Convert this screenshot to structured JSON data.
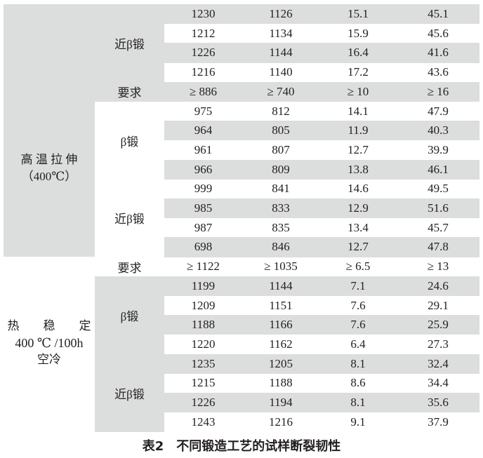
{
  "table": {
    "sections": [
      {
        "label_line1": "高 温 拉 伸",
        "label_line2": "（400℃）",
        "groups": [
          {
            "label": "近β锻",
            "rows": [
              [
                "1230",
                "1126",
                "15.1",
                "45.1"
              ],
              [
                "1212",
                "1134",
                "15.9",
                "45.6"
              ],
              [
                "1226",
                "1144",
                "16.4",
                "41.6"
              ],
              [
                "1216",
                "1140",
                "17.2",
                "43.6"
              ]
            ]
          },
          {
            "label": "要求",
            "rows": [
              [
                "≥ 886",
                "≥ 740",
                "≥ 10",
                "≥ 16"
              ]
            ]
          },
          {
            "label": "β锻",
            "rows": [
              [
                "975",
                "812",
                "14.1",
                "47.9"
              ],
              [
                "964",
                "805",
                "11.9",
                "40.3"
              ],
              [
                "961",
                "807",
                "12.7",
                "39.9"
              ],
              [
                "966",
                "809",
                "13.8",
                "46.1"
              ]
            ]
          },
          {
            "label": "近β锻",
            "rows": [
              [
                "999",
                "841",
                "14.6",
                "49.5"
              ],
              [
                "985",
                "833",
                "12.9",
                "51.6"
              ],
              [
                "987",
                "835",
                "13.4",
                "45.7"
              ],
              [
                "698",
                "846",
                "12.7",
                "47.8"
              ]
            ]
          }
        ]
      },
      {
        "label_line1": "热　　稳　　定",
        "label_line2": "400 ℃ /100h",
        "label_line3": "空冷",
        "groups": [
          {
            "label": "要求",
            "rows": [
              [
                "≥ 1122",
                "≥ 1035",
                "≥ 6.5",
                "≥ 13"
              ]
            ]
          },
          {
            "label": "β锻",
            "rows": [
              [
                "1199",
                "1144",
                "7.1",
                "24.6"
              ],
              [
                "1209",
                "1151",
                "7.6",
                "29.1"
              ],
              [
                "1188",
                "1166",
                "7.6",
                "25.9"
              ],
              [
                "1220",
                "1162",
                "6.4",
                "27.3"
              ]
            ]
          },
          {
            "label": "近β锻",
            "rows": [
              [
                "1235",
                "1205",
                "8.1",
                "32.4"
              ],
              [
                "1215",
                "1188",
                "8.6",
                "34.4"
              ],
              [
                "1226",
                "1194",
                "8.1",
                "35.6"
              ],
              [
                "1243",
                "1216",
                "9.1",
                "37.9"
              ]
            ]
          }
        ]
      }
    ]
  },
  "caption": "表2　不同锻造工艺的试样断裂韧性",
  "colors": {
    "shade": "#dcdddd",
    "text": "#231f20"
  }
}
